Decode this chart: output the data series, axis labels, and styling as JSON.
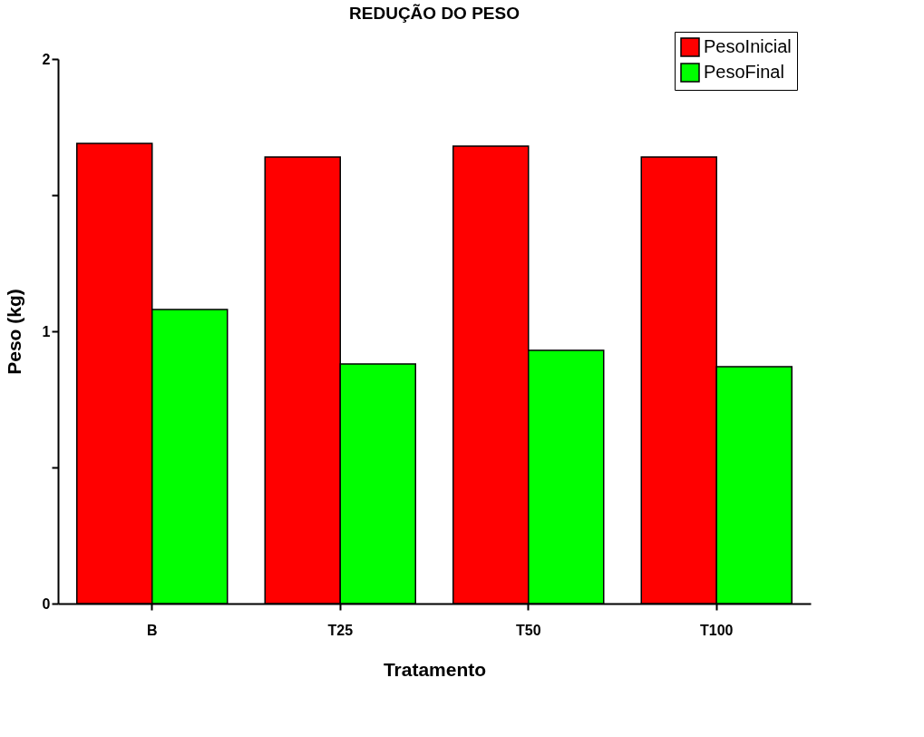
{
  "chart_data": {
    "type": "bar",
    "title": "REDUÇÃO DO PESO",
    "xlabel": "Tratamento",
    "ylabel": "Peso (kg)",
    "categories": [
      "B",
      "T25",
      "T50",
      "T100"
    ],
    "series": [
      {
        "name": "PesoInicial",
        "color": "#ff0000",
        "values": [
          1.69,
          1.64,
          1.68,
          1.64
        ]
      },
      {
        "name": "PesoFinal",
        "color": "#00ff00",
        "values": [
          1.08,
          0.88,
          0.93,
          0.87
        ]
      }
    ],
    "ylim": [
      0,
      2
    ],
    "yticks": [
      0,
      {
        "value": 0.5,
        "label": null
      },
      1,
      {
        "value": 1.5,
        "label": null
      },
      2
    ],
    "grid": false,
    "legend": "top right"
  }
}
